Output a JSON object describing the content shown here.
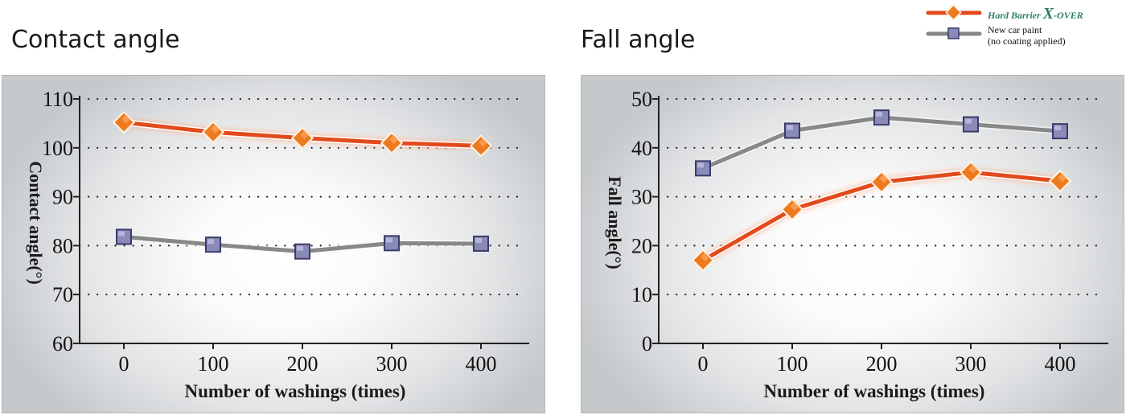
{
  "legend": {
    "series1": {
      "text_small": "Hard Barrier ",
      "text_big": "X",
      "text_rest": "-OVER"
    },
    "series2": {
      "line1": "New car paint",
      "line2": "(no coating applied)"
    }
  },
  "colors": {
    "series1_line": "#e24a1c",
    "series1_marker": "#ee7a1e",
    "series2_line": "#888888",
    "series2_marker": "#8a8ab8"
  },
  "chart_data": [
    {
      "type": "line",
      "title": "Contact angle",
      "xlabel": "Number of washings (times)",
      "ylabel": "Contact angle(°)",
      "categories": [
        "0",
        "100",
        "200",
        "300",
        "400"
      ],
      "ylim": [
        60,
        110
      ],
      "yticks": [
        "60",
        "70",
        "80",
        "90",
        "100",
        "110"
      ],
      "grid": "dotted-horizontal",
      "series": [
        {
          "name": "Hard Barrier X-OVER",
          "values": [
            105.2,
            103.2,
            102.0,
            101.0,
            100.4
          ],
          "marker": "diamond"
        },
        {
          "name": "New car paint (no coating applied)",
          "values": [
            81.8,
            80.2,
            78.8,
            80.5,
            80.4
          ],
          "marker": "square"
        }
      ]
    },
    {
      "type": "line",
      "title": "Fall angle",
      "xlabel": "Number of washings (times)",
      "ylabel": "Fall angle(°)",
      "categories": [
        "0",
        "100",
        "200",
        "300",
        "400"
      ],
      "ylim": [
        0,
        50
      ],
      "yticks": [
        "0",
        "10",
        "20",
        "30",
        "40",
        "50"
      ],
      "grid": "dotted-horizontal",
      "series": [
        {
          "name": "Hard Barrier X-OVER",
          "values": [
            17.0,
            27.4,
            33.0,
            35.0,
            33.2
          ],
          "marker": "diamond"
        },
        {
          "name": "New car paint (no coating applied)",
          "values": [
            35.8,
            43.5,
            46.2,
            44.8,
            43.4
          ],
          "marker": "square"
        }
      ]
    }
  ]
}
